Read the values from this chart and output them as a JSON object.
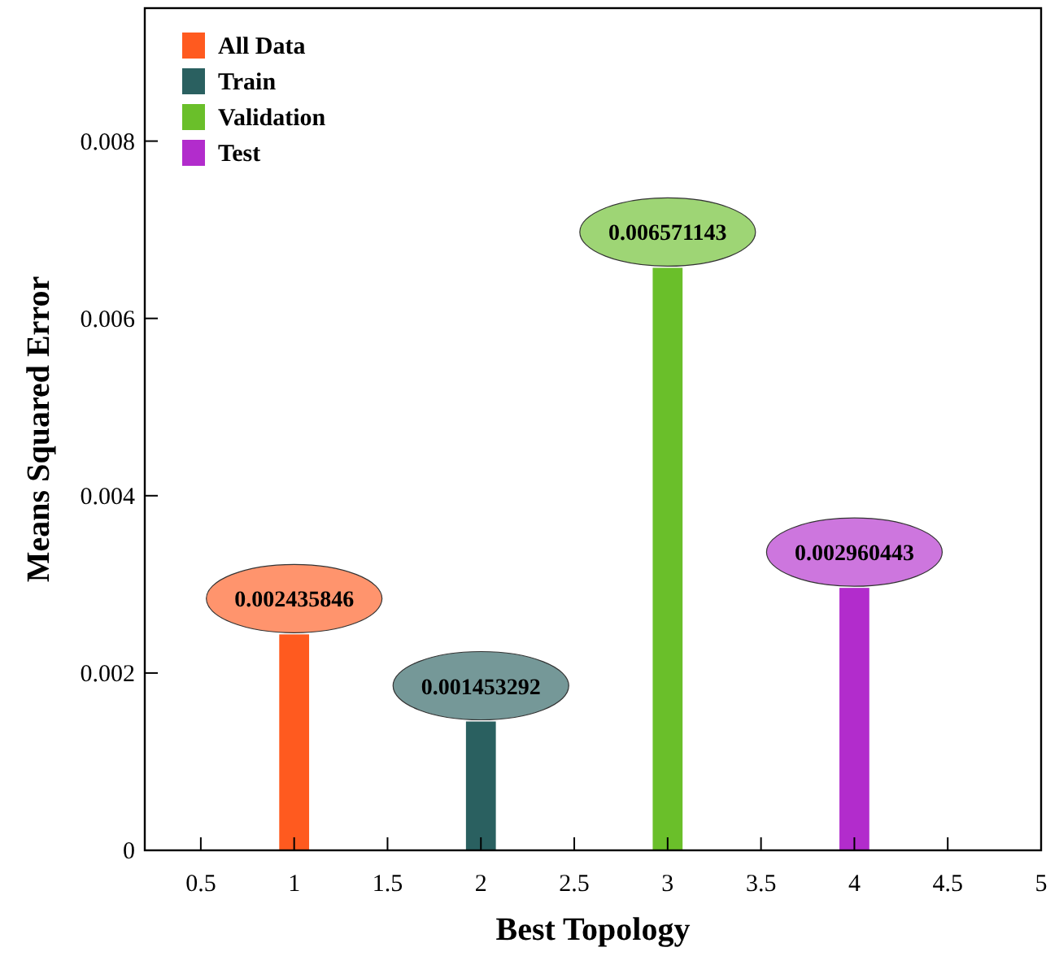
{
  "chart_data": {
    "type": "bar",
    "xlabel": "Best Topology",
    "ylabel": "Means Squared Error",
    "xlim": [
      0.2,
      5
    ],
    "xticks": [
      0.5,
      1,
      1.5,
      2,
      2.5,
      3,
      3.5,
      4,
      4.5,
      5
    ],
    "ylim": [
      0,
      0.0095
    ],
    "yticks": [
      0,
      0.002,
      0.004,
      0.006,
      0.008
    ],
    "series": [
      {
        "name": "All Data",
        "color": "#ff5a1f",
        "x": [
          1
        ],
        "values": [
          0.002435846
        ]
      },
      {
        "name": "Train",
        "color": "#2a6060",
        "x": [
          2
        ],
        "values": [
          0.001453292
        ]
      },
      {
        "name": "Validation",
        "color": "#6abf2a",
        "x": [
          3
        ],
        "values": [
          0.006571143
        ]
      },
      {
        "name": "Test",
        "color": "#b22ccc",
        "x": [
          4
        ],
        "values": [
          0.002960443
        ]
      }
    ],
    "data_labels": true,
    "legend": "top left",
    "grid": false
  }
}
